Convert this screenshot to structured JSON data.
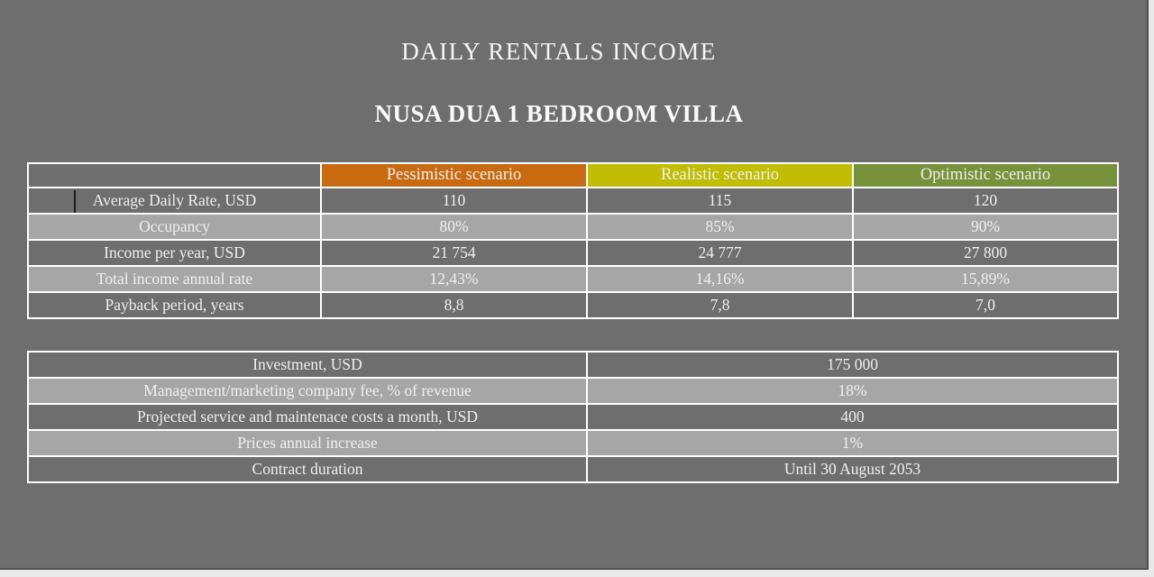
{
  "page": {
    "title": "DAILY RENTALS INCOME",
    "subtitle": "NUSA DUA 1 BEDROOM VILLA"
  },
  "colors": {
    "page_background": "#6e6e6e",
    "app_background": "#e9e9e9",
    "row_dark": "#6e6e6e",
    "row_light": "#a6a6a6",
    "border": "#ffffff",
    "text": "#efefef",
    "pessimistic_header": "#c86a10",
    "realistic_header": "#c1bd05",
    "optimistic_header": "#78923b"
  },
  "scenario_table": {
    "header": {
      "labels": [
        "",
        "Pessimistic scenario",
        "Realistic scenario",
        "Optimistic scenario"
      ],
      "colors": [
        "#6e6e6e",
        "#c86a10",
        "#c1bd05",
        "#78923b"
      ]
    },
    "rows": [
      {
        "label": "Average Daily Rate, USD",
        "values": [
          "110",
          "115",
          "120"
        ]
      },
      {
        "label": "Occupancy",
        "values": [
          "80%",
          "85%",
          "90%"
        ]
      },
      {
        "label": "Income per year, USD",
        "values": [
          "21 754",
          "24 777",
          "27 800"
        ]
      },
      {
        "label": "Total income annual rate",
        "values": [
          "12,43%",
          "14,16%",
          "15,89%"
        ]
      },
      {
        "label": "Payback period, years",
        "values": [
          "8,8",
          "7,8",
          "7,0"
        ]
      }
    ]
  },
  "details_table": {
    "rows": [
      {
        "label": "Investment, USD",
        "value": "175 000"
      },
      {
        "label": "Management/marketing company fee, % of revenue",
        "value": "18%"
      },
      {
        "label": "Projected service and maintenace costs a month, USD",
        "value": "400"
      },
      {
        "label": "Prices annual increase",
        "value": "1%"
      },
      {
        "label": "Contract duration",
        "value": "Until 30 August 2053"
      }
    ]
  }
}
